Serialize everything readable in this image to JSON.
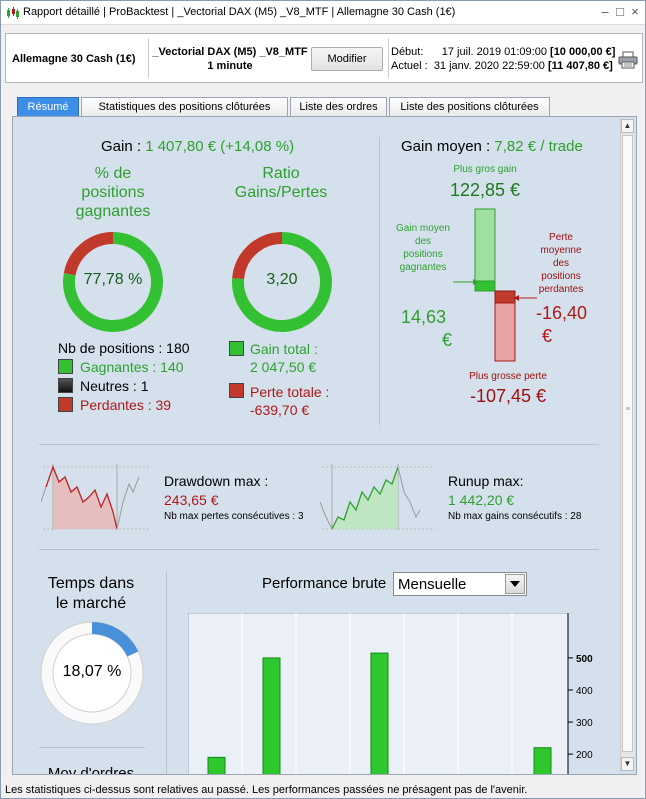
{
  "window": {
    "title_parts": [
      "Rapport détaillé",
      "ProBacktest",
      "_Vectorial DAX (M5) _V8_MTF",
      "Allemagne 30 Cash (1€)"
    ],
    "controls": [
      "–",
      "□",
      "×"
    ]
  },
  "infobar": {
    "instrument": "Allemagne 30 Cash (1€)",
    "strategy_name": "Vectorial DAX (M5) _V8_MTF",
    "timeframe": "1 minute",
    "modify_label": "Modifier",
    "start_label": "Début:",
    "start_date": "17 juil. 2019 01:09:00",
    "start_value": "[10 000,00 €]",
    "current_label": "Actuel :",
    "current_date": "31 janv. 2020 22:59:00",
    "current_value": "[11 407,80 €]"
  },
  "tabs": [
    {
      "label": "Résumé",
      "active": true
    },
    {
      "label": "Statistiques des positions clôturées",
      "active": false
    },
    {
      "label": "Liste des ordres",
      "active": false
    },
    {
      "label": "Liste des positions clôturées",
      "active": false
    }
  ],
  "summary": {
    "gain_label": "Gain :",
    "gain_value": "1 407,80 € (+14,08 %)",
    "pct_winning_title": [
      "% de",
      "positions",
      "gagnantes"
    ],
    "pct_winning_value": "77,78 %",
    "pct_winning_fraction": 0.7778,
    "ratio_title": [
      "Ratio",
      "Gains/Pertes"
    ],
    "ratio_value": "3,20",
    "ratio_fraction": 0.762,
    "nb_positions_label": "Nb de positions : 180",
    "gagnantes": "Gagnantes : 140",
    "neutres": "Neutres : 1",
    "perdantes": "Perdantes : 39",
    "gain_total_label": "Gain total :",
    "gain_total_value": "2 047,50 €",
    "perte_totale_label": "Perte totale :",
    "perte_totale_value": "-639,70 €",
    "avg_gain_label": "Gain moyen :",
    "avg_gain_value": "7,82 € / trade",
    "plus_gros_gain_label": "Plus gros gain",
    "plus_gros_gain_value": "122,85 €",
    "gain_moyen_positions_label": [
      "Gain moyen",
      "des",
      "positions",
      "gagnantes"
    ],
    "gain_moyen_value": "14,63",
    "euro": "€",
    "perte_moyenne_label": [
      "Perte",
      "moyenne",
      "des",
      "positions",
      "perdantes"
    ],
    "perte_moyenne_value": "-16,40",
    "plus_grosse_perte_label": "Plus grosse perte",
    "plus_grosse_perte_value": "-107,45 €",
    "drawdown_label": "Drawdown max :",
    "drawdown_value": "243,65 €",
    "nb_max_pertes": "Nb max pertes consécutives : 3",
    "runup_label": "Runup max:",
    "runup_value": "1 442,20 €",
    "nb_max_gains": "Nb max gains consécutifs : 28",
    "temps_marche_title": [
      "Temps dans",
      "le marché"
    ],
    "temps_marche_value": "18,07 %",
    "temps_marche_fraction": 0.1807,
    "moy_ordres_label": "Moy d'ordres",
    "perf_title": "Performance brute",
    "perf_period": "Mensuelle"
  },
  "chart_data": {
    "type": "bar",
    "title": "Performance brute",
    "xlabel": "",
    "ylabel": "",
    "y_ticks": [
      500,
      400,
      300,
      200
    ],
    "values": [
      190,
      500,
      515,
      220
    ],
    "ylim": [
      110,
      640
    ]
  },
  "footer": "Les statistiques ci-dessus sont relatives au passé. Les performances passées ne présagent pas de l'avenir.",
  "colors": {
    "green": "#2f9f2f",
    "red": "#b01818",
    "accent_tab": "#3d8ee6"
  }
}
